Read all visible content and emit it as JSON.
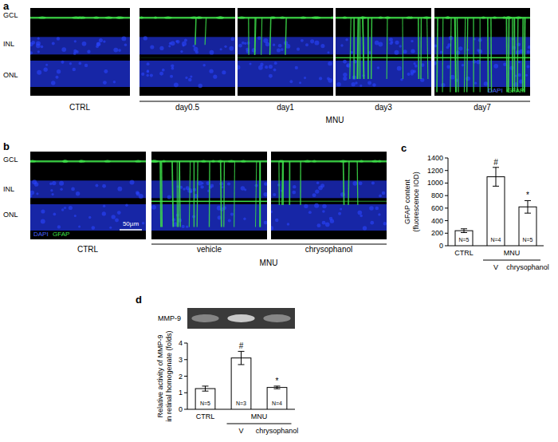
{
  "panels": {
    "labels": [
      "a",
      "b",
      "c",
      "d"
    ],
    "a": {
      "layers": [
        "GCL",
        "INL",
        "ONL"
      ],
      "stain": [
        "DAPI",
        "GFAP"
      ],
      "control": "CTRL",
      "treatment": "MNU",
      "groups": [
        "day0.5",
        "day1",
        "day3",
        "day7"
      ]
    },
    "b": {
      "layers": [
        "GCL",
        "INL",
        "ONL"
      ],
      "stain": [
        "DAPI",
        "GFAP"
      ],
      "scale_bar": "50µm",
      "control": "CTRL",
      "treatment": "MNU",
      "groups": [
        "vehicle",
        "chrysophanol"
      ]
    }
  },
  "chart_data": [
    {
      "type": "bar",
      "ylabel": [
        "GFAP content",
        "(fluorescence IOD)"
      ],
      "categories": [
        "CTRL",
        "V",
        "chrysophanol"
      ],
      "values": [
        240,
        1100,
        620
      ],
      "errors": [
        30,
        150,
        100
      ],
      "n_labels": [
        "N=5",
        "N=4",
        "N=5"
      ],
      "significance": [
        null,
        "#",
        "*"
      ],
      "group": {
        "label": "MNU",
        "categories": [
          "V",
          "chrysophanol"
        ]
      },
      "color": "#ffffff",
      "ylim": [
        0,
        1400
      ],
      "yticks": [
        0,
        200,
        400,
        600,
        800,
        1000,
        1200,
        1400
      ]
    },
    {
      "type": "bar",
      "blot_label": "MMP-9",
      "ylabel": [
        "Relative activity of MMP-9",
        "in retinal homogenate (folds)"
      ],
      "categories": [
        "CTRL",
        "V",
        "chrysophanol"
      ],
      "values": [
        1.25,
        3.1,
        1.32
      ],
      "errors": [
        0.15,
        0.4,
        0.08
      ],
      "n_labels": [
        "N=5",
        "N=3",
        "N=4"
      ],
      "significance": [
        null,
        "#",
        "*"
      ],
      "group": {
        "label": "MNU",
        "categories": [
          "V",
          "chrysophanol"
        ]
      },
      "color": "#ffffff",
      "ylim": [
        0,
        4
      ],
      "yticks": [
        0,
        1,
        2,
        3,
        4
      ]
    }
  ]
}
